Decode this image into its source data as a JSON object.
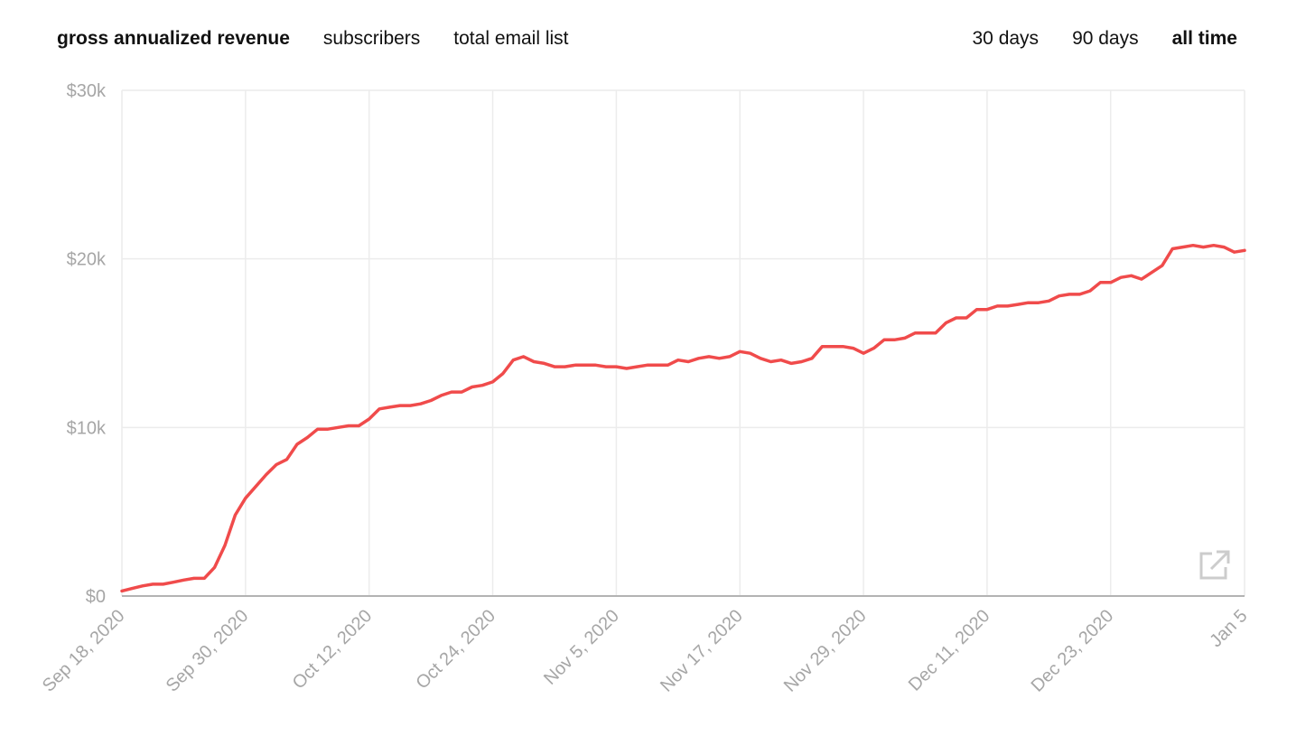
{
  "tabs": {
    "metrics": [
      {
        "label": "gross annualized revenue",
        "active": true
      },
      {
        "label": "subscribers",
        "active": false
      },
      {
        "label": "total email list",
        "active": false
      }
    ],
    "ranges": [
      {
        "label": "30 days",
        "active": false
      },
      {
        "label": "90 days",
        "active": false
      },
      {
        "label": "all time",
        "active": true
      }
    ]
  },
  "expand_icon": "external-link-icon",
  "colors": {
    "line": "#f04b4b",
    "grid": "#ececec",
    "axis": "#b3b3b3",
    "tick_text": "#a6a6a6"
  },
  "chart_data": {
    "type": "line",
    "title": "",
    "xlabel": "",
    "ylabel": "",
    "ylim": [
      0,
      30000
    ],
    "xlim": [
      "2020-09-18",
      "2021-01-05"
    ],
    "yticks": [
      {
        "value": 0,
        "label": "$0"
      },
      {
        "value": 10000,
        "label": "$10k"
      },
      {
        "value": 20000,
        "label": "$20k"
      },
      {
        "value": 30000,
        "label": "$30k"
      }
    ],
    "xticks": [
      {
        "value": "2020-09-18",
        "label": "Sep 18, 2020"
      },
      {
        "value": "2020-09-30",
        "label": "Sep 30, 2020"
      },
      {
        "value": "2020-10-12",
        "label": "Oct 12, 2020"
      },
      {
        "value": "2020-10-24",
        "label": "Oct 24, 2020"
      },
      {
        "value": "2020-11-05",
        "label": "Nov 5, 2020"
      },
      {
        "value": "2020-11-17",
        "label": "Nov 17, 2020"
      },
      {
        "value": "2020-11-29",
        "label": "Nov 29, 2020"
      },
      {
        "value": "2020-12-11",
        "label": "Dec 11, 2020"
      },
      {
        "value": "2020-12-23",
        "label": "Dec 23, 2020"
      },
      {
        "value": "2021-01-05",
        "label": "Jan 5"
      }
    ],
    "grid": true,
    "series": [
      {
        "name": "",
        "points": [
          [
            "2020-09-18",
            300
          ],
          [
            "2020-09-19",
            450
          ],
          [
            "2020-09-20",
            600
          ],
          [
            "2020-09-21",
            700
          ],
          [
            "2020-09-22",
            700
          ],
          [
            "2020-09-23",
            820
          ],
          [
            "2020-09-24",
            950
          ],
          [
            "2020-09-25",
            1050
          ],
          [
            "2020-09-26",
            1050
          ],
          [
            "2020-09-27",
            1700
          ],
          [
            "2020-09-28",
            3000
          ],
          [
            "2020-09-29",
            4800
          ],
          [
            "2020-09-30",
            5800
          ],
          [
            "2020-10-01",
            6500
          ],
          [
            "2020-10-02",
            7200
          ],
          [
            "2020-10-03",
            7800
          ],
          [
            "2020-10-04",
            8100
          ],
          [
            "2020-10-05",
            9000
          ],
          [
            "2020-10-06",
            9400
          ],
          [
            "2020-10-07",
            9900
          ],
          [
            "2020-10-08",
            9900
          ],
          [
            "2020-10-09",
            10000
          ],
          [
            "2020-10-10",
            10100
          ],
          [
            "2020-10-11",
            10100
          ],
          [
            "2020-10-12",
            10500
          ],
          [
            "2020-10-13",
            11100
          ],
          [
            "2020-10-14",
            11200
          ],
          [
            "2020-10-15",
            11300
          ],
          [
            "2020-10-16",
            11300
          ],
          [
            "2020-10-17",
            11400
          ],
          [
            "2020-10-18",
            11600
          ],
          [
            "2020-10-19",
            11900
          ],
          [
            "2020-10-20",
            12100
          ],
          [
            "2020-10-21",
            12100
          ],
          [
            "2020-10-22",
            12400
          ],
          [
            "2020-10-23",
            12500
          ],
          [
            "2020-10-24",
            12700
          ],
          [
            "2020-10-25",
            13200
          ],
          [
            "2020-10-26",
            14000
          ],
          [
            "2020-10-27",
            14200
          ],
          [
            "2020-10-28",
            13900
          ],
          [
            "2020-10-29",
            13800
          ],
          [
            "2020-10-30",
            13600
          ],
          [
            "2020-10-31",
            13600
          ],
          [
            "2020-11-01",
            13700
          ],
          [
            "2020-11-02",
            13700
          ],
          [
            "2020-11-03",
            13700
          ],
          [
            "2020-11-04",
            13600
          ],
          [
            "2020-11-05",
            13600
          ],
          [
            "2020-11-06",
            13500
          ],
          [
            "2020-11-07",
            13600
          ],
          [
            "2020-11-08",
            13700
          ],
          [
            "2020-11-09",
            13700
          ],
          [
            "2020-11-10",
            13700
          ],
          [
            "2020-11-11",
            14000
          ],
          [
            "2020-11-12",
            13900
          ],
          [
            "2020-11-13",
            14100
          ],
          [
            "2020-11-14",
            14200
          ],
          [
            "2020-11-15",
            14100
          ],
          [
            "2020-11-16",
            14200
          ],
          [
            "2020-11-17",
            14500
          ],
          [
            "2020-11-18",
            14400
          ],
          [
            "2020-11-19",
            14100
          ],
          [
            "2020-11-20",
            13900
          ],
          [
            "2020-11-21",
            14000
          ],
          [
            "2020-11-22",
            13800
          ],
          [
            "2020-11-23",
            13900
          ],
          [
            "2020-11-24",
            14100
          ],
          [
            "2020-11-25",
            14800
          ],
          [
            "2020-11-26",
            14800
          ],
          [
            "2020-11-27",
            14800
          ],
          [
            "2020-11-28",
            14700
          ],
          [
            "2020-11-29",
            14400
          ],
          [
            "2020-11-30",
            14700
          ],
          [
            "2020-12-01",
            15200
          ],
          [
            "2020-12-02",
            15200
          ],
          [
            "2020-12-03",
            15300
          ],
          [
            "2020-12-04",
            15600
          ],
          [
            "2020-12-05",
            15600
          ],
          [
            "2020-12-06",
            15600
          ],
          [
            "2020-12-07",
            16200
          ],
          [
            "2020-12-08",
            16500
          ],
          [
            "2020-12-09",
            16500
          ],
          [
            "2020-12-10",
            17000
          ],
          [
            "2020-12-11",
            17000
          ],
          [
            "2020-12-12",
            17200
          ],
          [
            "2020-12-13",
            17200
          ],
          [
            "2020-12-14",
            17300
          ],
          [
            "2020-12-15",
            17400
          ],
          [
            "2020-12-16",
            17400
          ],
          [
            "2020-12-17",
            17500
          ],
          [
            "2020-12-18",
            17800
          ],
          [
            "2020-12-19",
            17900
          ],
          [
            "2020-12-20",
            17900
          ],
          [
            "2020-12-21",
            18100
          ],
          [
            "2020-12-22",
            18600
          ],
          [
            "2020-12-23",
            18600
          ],
          [
            "2020-12-24",
            18900
          ],
          [
            "2020-12-25",
            19000
          ],
          [
            "2020-12-26",
            18800
          ],
          [
            "2020-12-27",
            19200
          ],
          [
            "2020-12-28",
            19600
          ],
          [
            "2020-12-29",
            20600
          ],
          [
            "2020-12-30",
            20700
          ],
          [
            "2020-12-31",
            20800
          ],
          [
            "2021-01-01",
            20700
          ],
          [
            "2021-01-02",
            20800
          ],
          [
            "2021-01-03",
            20700
          ],
          [
            "2021-01-04",
            20400
          ],
          [
            "2021-01-05",
            20500
          ]
        ]
      }
    ]
  }
}
